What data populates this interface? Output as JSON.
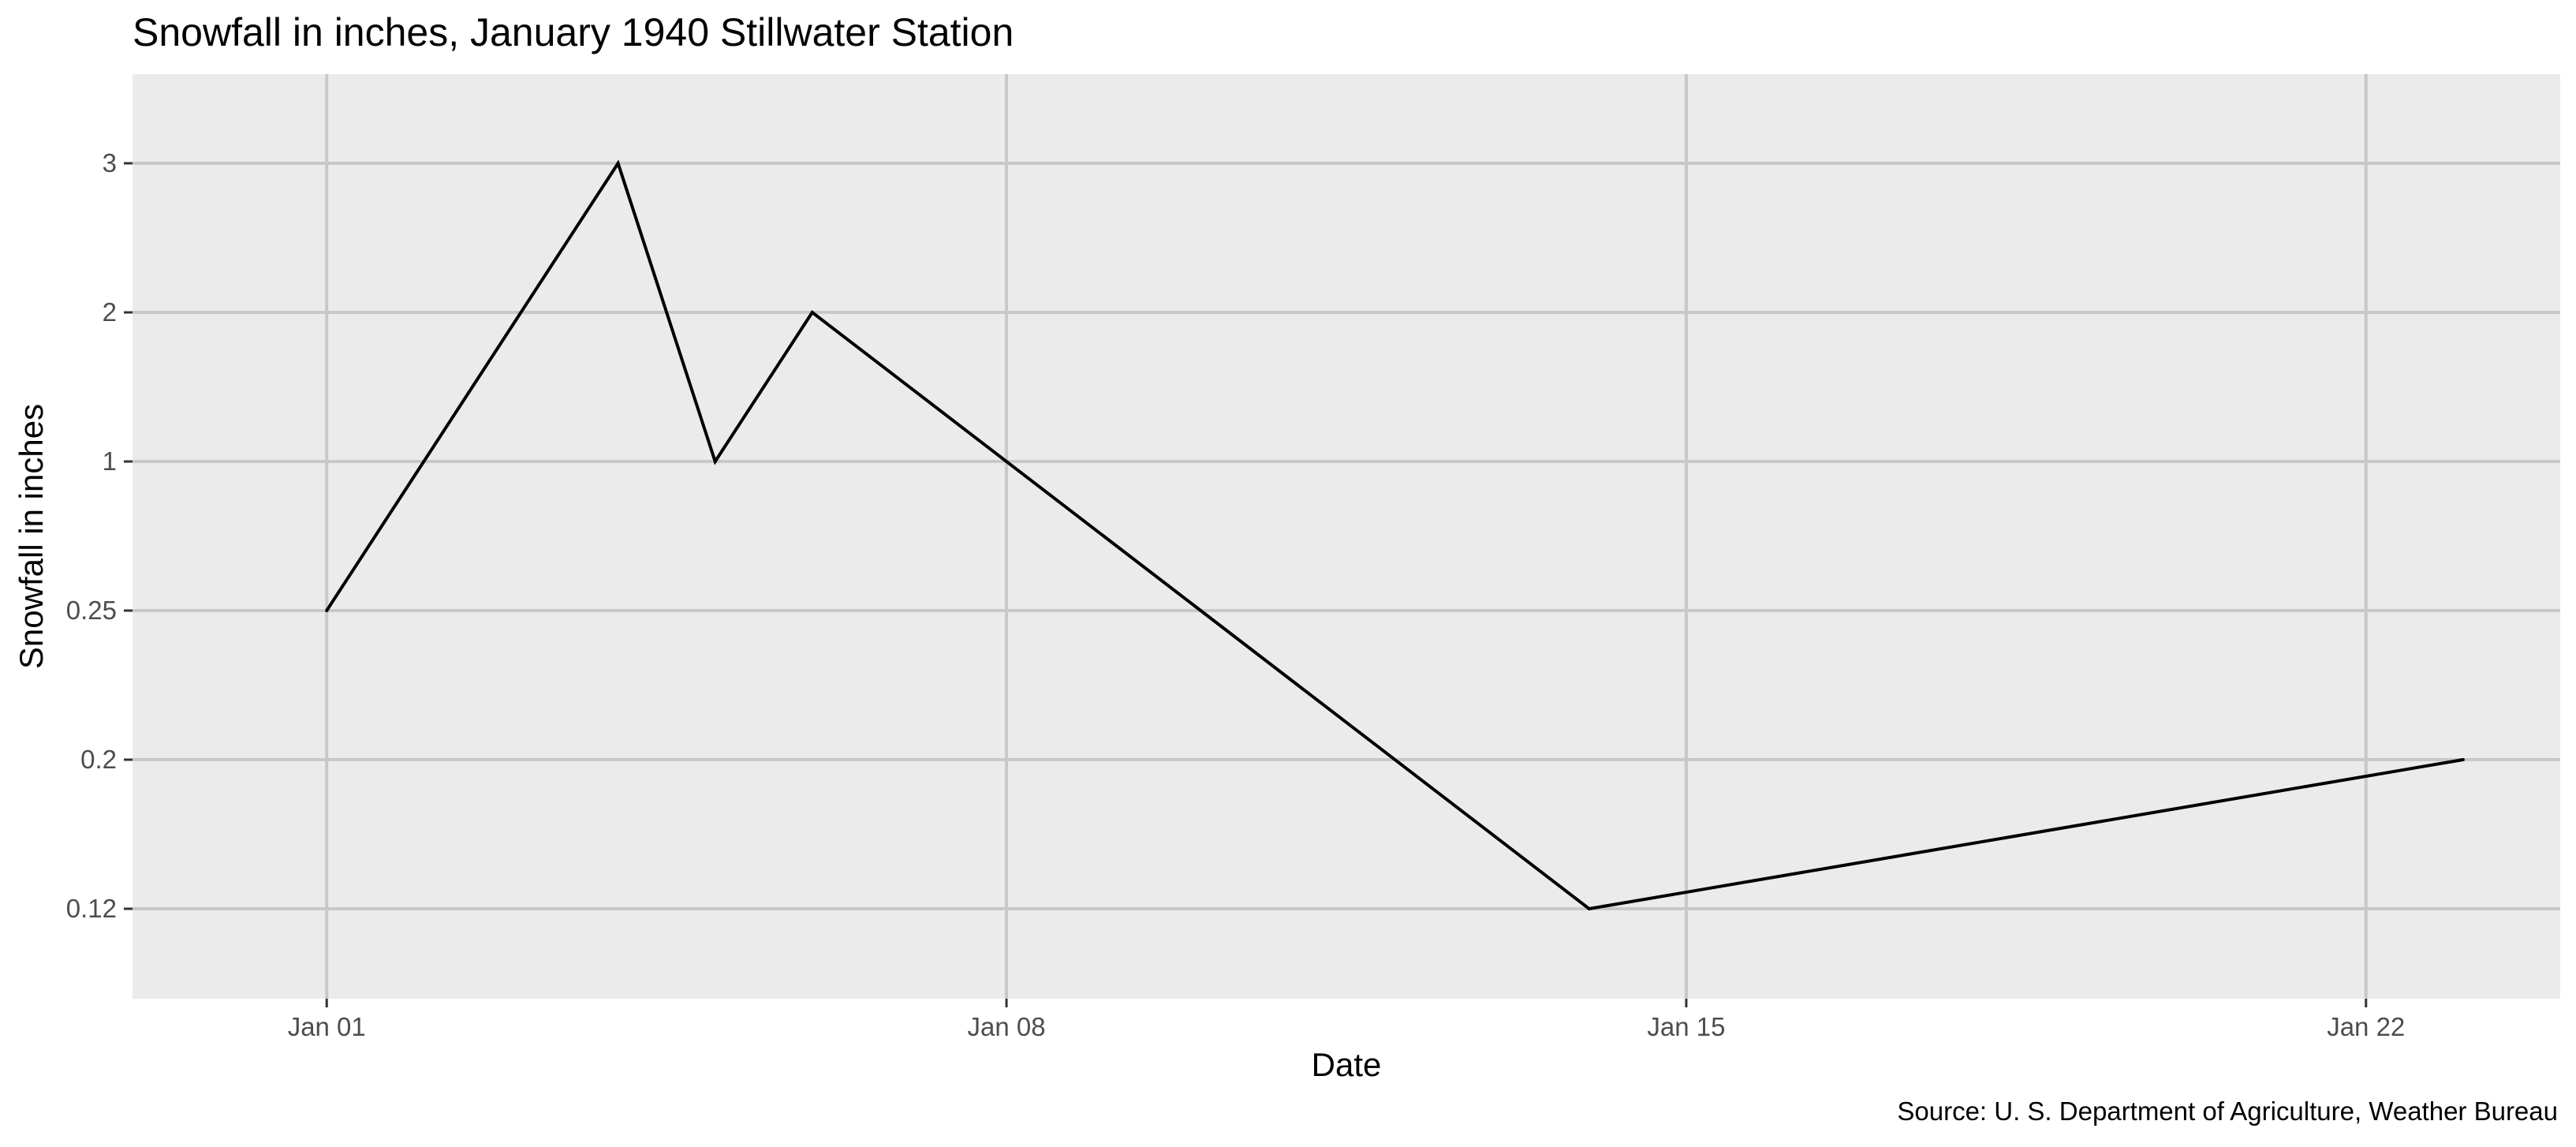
{
  "chart_data": {
    "type": "line",
    "title": "Snowfall in inches, January 1940 Stillwater Station",
    "xlabel": "Date",
    "ylabel": "Snowfall in inches",
    "caption": "Source: U. S. Department of Agriculture, Weather Bureau",
    "x_tick_labels": [
      "Jan 01",
      "Jan 08",
      "Jan 15",
      "Jan 22"
    ],
    "y_tick_labels": [
      "0.12",
      "0.2",
      "0.25",
      "1",
      "2",
      "3"
    ],
    "y_axis_type": "categorical",
    "x_axis_type": "date",
    "xlim": [
      "1939-12-30",
      "1940-01-24"
    ],
    "grid": true,
    "series": [
      {
        "color": "#000000",
        "points": [
          {
            "x": "1940-01-01",
            "y": "0.25"
          },
          {
            "x": "1940-01-04",
            "y": "3"
          },
          {
            "x": "1940-01-05",
            "y": "1"
          },
          {
            "x": "1940-01-06",
            "y": "2"
          },
          {
            "x": "1940-01-14",
            "y": "0.12"
          },
          {
            "x": "1940-01-23",
            "y": "0.2"
          }
        ]
      }
    ],
    "colors": {
      "panel_background": "#ebebeb",
      "grid": "#c8c8c8",
      "line": "#000000"
    }
  }
}
